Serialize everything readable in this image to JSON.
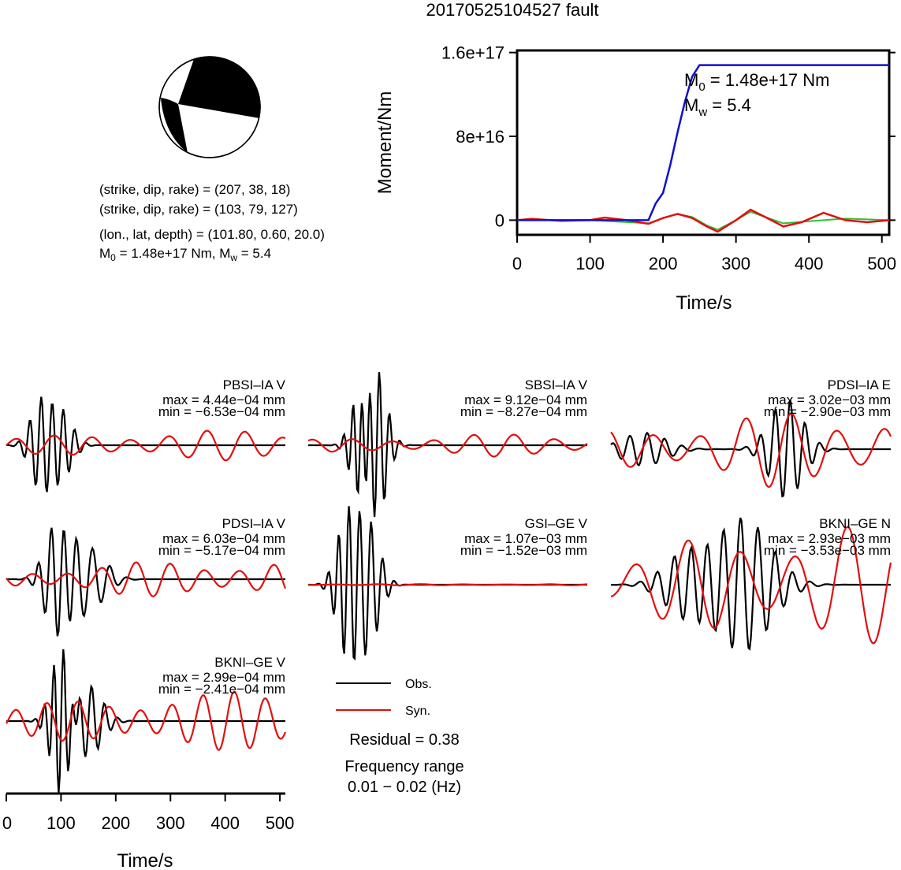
{
  "title": "20170525104527 fault",
  "focal_mechanism": {
    "plane1": "(strike, dip, rake) = (207, 38, 18)",
    "plane2": "(strike, dip, rake) = (103, 79, 127)",
    "location": "(lon., lat, depth) = (101.80, 0.60, 20.0)",
    "moment_line": {
      "m0_prefix": "M",
      "m0_sub": "0",
      "m0_rest": " = 1.48e+17 Nm, M",
      "mw_sub": "w",
      "mw_rest": " = 5.4"
    }
  },
  "moment_chart": {
    "ylabel": "Moment/Nm",
    "xlabel": "Time/s",
    "yticks": [
      "0",
      "8e+16",
      "1.6e+17"
    ],
    "xticks": [
      "0",
      "100",
      "200",
      "300",
      "400",
      "500"
    ],
    "note_m0": {
      "prefix": "M",
      "sub": "0",
      "rest": " = 1.48e+17 Nm"
    },
    "note_mw": {
      "prefix": "M",
      "sub": "w",
      "rest": " = 5.4"
    }
  },
  "waveform_panels": [
    {
      "station": "PBSI–IA V",
      "max": "max = 4.44e−04 mm",
      "min": "min = −6.53e−04 mm"
    },
    {
      "station": "SBSI–IA V",
      "max": "max = 9.12e−04 mm",
      "min": "min = −8.27e−04 mm"
    },
    {
      "station": "PDSI–IA E",
      "max": "max = 3.02e−03 mm",
      "min": "min = −2.90e−03 mm"
    },
    {
      "station": "PDSI–IA V",
      "max": "max = 6.03e−04 mm",
      "min": "min = −5.17e−04 mm"
    },
    {
      "station": "GSI–GE V",
      "max": "max = 1.07e−03 mm",
      "min": "min = −1.52e−03 mm"
    },
    {
      "station": "BKNI–GE N",
      "max": "max = 2.93e−03 mm",
      "min": "min = −3.53e−03 mm"
    },
    {
      "station": "BKNI–GE V",
      "max": "max = 2.99e−04 mm",
      "min": "min = −2.41e−04 mm"
    }
  ],
  "legend": {
    "obs": "Obs.",
    "syn": "Syn."
  },
  "residual": "Residual = 0.38",
  "freq_label": "Frequency range",
  "freq_range": "0.01 − 0.02 (Hz)",
  "bottom_axis": {
    "xlabel": "Time/s",
    "xticks": [
      "0",
      "100",
      "200",
      "300",
      "400",
      "500"
    ]
  },
  "colors": {
    "obs": "#000000",
    "syn": "#e01010",
    "moment": "#1010d0",
    "moment_green": "#30c030"
  },
  "chart_data": [
    {
      "type": "line",
      "title": "",
      "xlabel": "Time/s",
      "ylabel": "Moment/Nm",
      "xlim": [
        0,
        510
      ],
      "ylim": [
        -1.4e+16,
        1.62e+17
      ],
      "series": [
        {
          "x": [
            0,
            180,
            190,
            200,
            210,
            220,
            230,
            240,
            250,
            510
          ],
          "values": [
            0,
            0,
            1.6e+16,
            2.6e+16,
            5.3e+16,
            8.4e+16,
            1.13e+17,
            1.37e+17,
            1.48e+17,
            1.48e+17
          ]
        }
      ],
      "secondary_series": [
        {
          "x": [
            0,
            20,
            60,
            100,
            120,
            150,
            180,
            200,
            220,
            240,
            260,
            275,
            300,
            320,
            340,
            365,
            390,
            420,
            450,
            480,
            510
          ],
          "values": [
            0,
            1300000000000000.0,
            -700000000000000.0,
            0,
            2500000000000000.0,
            0,
            -3500000000000000.0,
            2000000000000000.0,
            6000000000000000.0,
            2000000000000000.0,
            -6000000000000000.0,
            -1.1e+16,
            0,
            1e+16,
            3000000000000000.0,
            -6000000000000000.0,
            -2000000000000000.0,
            7000000000000000.0,
            0,
            -2000000000000000.0,
            0
          ]
        },
        {
          "x": [
            0,
            100,
            180,
            200,
            220,
            240,
            260,
            275,
            300,
            320,
            340,
            365,
            400,
            450,
            510
          ],
          "values": [
            0,
            0,
            -3000000000000000.0,
            2000000000000000.0,
            6000000000000000.0,
            3000000000000000.0,
            -5000000000000000.0,
            -9000000000000000.0,
            0,
            8000000000000000.0,
            3000000000000000.0,
            -3000000000000000.0,
            -1000000000000000.0,
            1500000000000000.0,
            0
          ]
        }
      ]
    }
  ]
}
